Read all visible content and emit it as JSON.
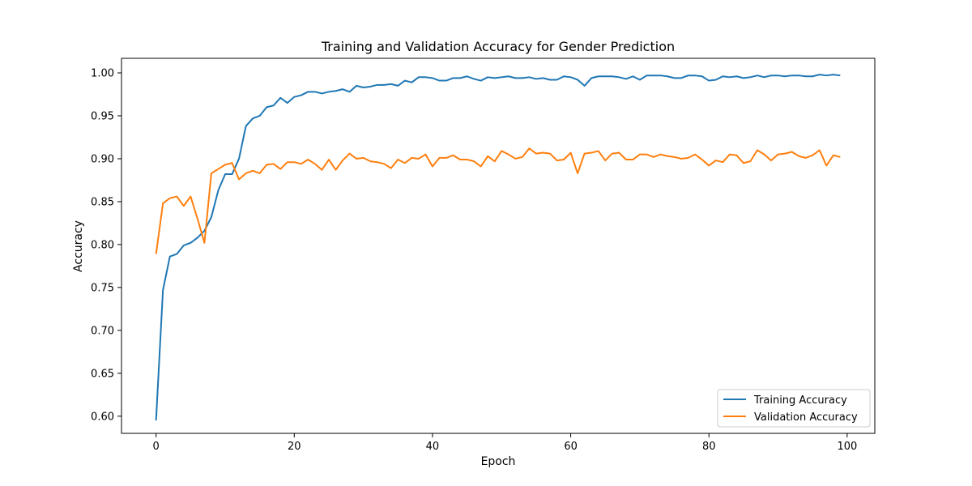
{
  "chart_data": {
    "type": "line",
    "title": "Training and Validation Accuracy for Gender Prediction",
    "xlabel": "Epoch",
    "ylabel": "Accuracy",
    "xlim": [
      -5,
      104
    ],
    "ylim": [
      0.58,
      1.017
    ],
    "xticks": [
      0,
      20,
      40,
      60,
      80,
      100
    ],
    "xtick_labels": [
      "0",
      "20",
      "40",
      "60",
      "80",
      "100"
    ],
    "yticks": [
      0.6,
      0.65,
      0.7,
      0.75,
      0.8,
      0.85,
      0.9,
      0.95,
      1.0
    ],
    "ytick_labels": [
      "0.60",
      "0.65",
      "0.70",
      "0.75",
      "0.80",
      "0.85",
      "0.90",
      "0.95",
      "1.00"
    ],
    "grid": false,
    "legend_position": "lower-right",
    "x": [
      0,
      1,
      2,
      3,
      4,
      5,
      6,
      7,
      8,
      9,
      10,
      11,
      12,
      13,
      14,
      15,
      16,
      17,
      18,
      19,
      20,
      21,
      22,
      23,
      24,
      25,
      26,
      27,
      28,
      29,
      30,
      31,
      32,
      33,
      34,
      35,
      36,
      37,
      38,
      39,
      40,
      41,
      42,
      43,
      44,
      45,
      46,
      47,
      48,
      49,
      50,
      51,
      52,
      53,
      54,
      55,
      56,
      57,
      58,
      59,
      60,
      61,
      62,
      63,
      64,
      65,
      66,
      67,
      68,
      69,
      70,
      71,
      72,
      73,
      74,
      75,
      76,
      77,
      78,
      79,
      80,
      81,
      82,
      83,
      84,
      85,
      86,
      87,
      88,
      89,
      90,
      91,
      92,
      93,
      94,
      95,
      96,
      97,
      98,
      99
    ],
    "series": [
      {
        "name": "Training Accuracy",
        "color": "#1f77b4",
        "values": [
          0.595,
          0.747,
          0.786,
          0.789,
          0.799,
          0.802,
          0.808,
          0.816,
          0.832,
          0.863,
          0.882,
          0.882,
          0.9,
          0.938,
          0.947,
          0.95,
          0.96,
          0.962,
          0.971,
          0.965,
          0.972,
          0.974,
          0.978,
          0.978,
          0.976,
          0.978,
          0.979,
          0.981,
          0.978,
          0.985,
          0.983,
          0.984,
          0.986,
          0.986,
          0.987,
          0.985,
          0.991,
          0.989,
          0.995,
          0.995,
          0.994,
          0.991,
          0.991,
          0.994,
          0.994,
          0.996,
          0.993,
          0.991,
          0.995,
          0.994,
          0.995,
          0.996,
          0.994,
          0.994,
          0.995,
          0.993,
          0.994,
          0.992,
          0.992,
          0.996,
          0.995,
          0.992,
          0.985,
          0.994,
          0.996,
          0.996,
          0.996,
          0.995,
          0.993,
          0.996,
          0.992,
          0.997,
          0.997,
          0.997,
          0.996,
          0.994,
          0.994,
          0.997,
          0.997,
          0.996,
          0.991,
          0.992,
          0.996,
          0.995,
          0.996,
          0.994,
          0.995,
          0.997,
          0.995,
          0.997,
          0.997,
          0.996,
          0.997,
          0.997,
          0.996,
          0.996,
          0.998,
          0.997,
          0.998,
          0.997
        ]
      },
      {
        "name": "Validation Accuracy",
        "color": "#ff7f0e",
        "values": [
          0.789,
          0.848,
          0.854,
          0.856,
          0.845,
          0.856,
          0.83,
          0.802,
          0.883,
          0.888,
          0.893,
          0.895,
          0.876,
          0.883,
          0.886,
          0.883,
          0.893,
          0.894,
          0.888,
          0.896,
          0.896,
          0.894,
          0.899,
          0.894,
          0.887,
          0.899,
          0.887,
          0.898,
          0.906,
          0.9,
          0.901,
          0.897,
          0.896,
          0.894,
          0.889,
          0.899,
          0.895,
          0.901,
          0.9,
          0.905,
          0.891,
          0.901,
          0.901,
          0.904,
          0.899,
          0.899,
          0.897,
          0.891,
          0.903,
          0.897,
          0.909,
          0.905,
          0.9,
          0.902,
          0.912,
          0.906,
          0.907,
          0.906,
          0.898,
          0.899,
          0.907,
          0.883,
          0.906,
          0.907,
          0.909,
          0.898,
          0.906,
          0.907,
          0.899,
          0.899,
          0.905,
          0.905,
          0.902,
          0.905,
          0.903,
          0.902,
          0.9,
          0.901,
          0.905,
          0.899,
          0.892,
          0.898,
          0.896,
          0.905,
          0.904,
          0.895,
          0.897,
          0.91,
          0.905,
          0.898,
          0.905,
          0.906,
          0.908,
          0.903,
          0.901,
          0.904,
          0.91,
          0.892,
          0.904,
          0.902
        ]
      }
    ]
  }
}
